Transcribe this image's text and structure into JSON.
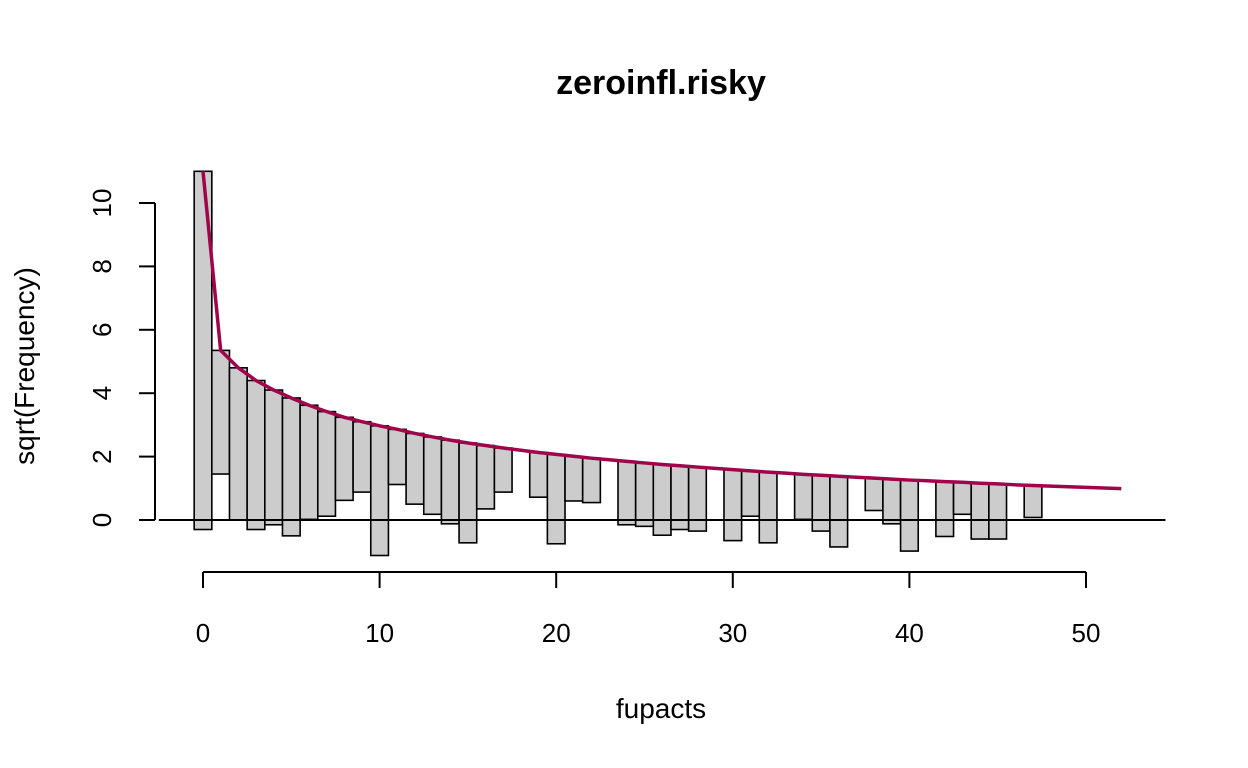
{
  "chart_data": {
    "type": "bar",
    "title": "zeroinfl.risky",
    "xlabel": "fupacts",
    "ylabel": "sqrt(Frequency)",
    "xlim": [
      -2.5,
      54.5
    ],
    "ylim": [
      -1.6,
      11.5
    ],
    "x_ticks": [
      "0",
      "10",
      "20",
      "30",
      "40",
      "50"
    ],
    "y_ticks": [
      "0",
      "2",
      "4",
      "6",
      "8",
      "10"
    ],
    "bar_width": 1,
    "bar_fill": "#cccccc",
    "bar_stroke": "#000000",
    "curve_color": "#a0044a",
    "bars": [
      {
        "x": 0,
        "top": 11.0,
        "bottom": -0.3
      },
      {
        "x": 1,
        "top": 5.35,
        "bottom": 1.45
      },
      {
        "x": 2,
        "top": 4.8,
        "bottom": 0.0
      },
      {
        "x": 3,
        "top": 4.4,
        "bottom": -0.3
      },
      {
        "x": 4,
        "top": 4.1,
        "bottom": -0.15
      },
      {
        "x": 5,
        "top": 3.85,
        "bottom": -0.5
      },
      {
        "x": 6,
        "top": 3.62,
        "bottom": 0.02
      },
      {
        "x": 7,
        "top": 3.42,
        "bottom": 0.12
      },
      {
        "x": 8,
        "top": 3.24,
        "bottom": 0.62
      },
      {
        "x": 9,
        "top": 3.1,
        "bottom": 0.88
      },
      {
        "x": 10,
        "top": 2.97,
        "bottom": -1.12
      },
      {
        "x": 11,
        "top": 2.86,
        "bottom": 1.12
      },
      {
        "x": 12,
        "top": 2.73,
        "bottom": 0.5
      },
      {
        "x": 13,
        "top": 2.62,
        "bottom": 0.18
      },
      {
        "x": 14,
        "top": 2.52,
        "bottom": -0.12
      },
      {
        "x": 15,
        "top": 2.43,
        "bottom": -0.72
      },
      {
        "x": 16,
        "top": 2.35,
        "bottom": 0.35
      },
      {
        "x": 17,
        "top": 2.27,
        "bottom": 0.88
      },
      {
        "x": 19,
        "top": 2.13,
        "bottom": 0.72
      },
      {
        "x": 20,
        "top": 2.07,
        "bottom": -0.75
      },
      {
        "x": 21,
        "top": 2.01,
        "bottom": 0.6
      },
      {
        "x": 22,
        "top": 1.95,
        "bottom": 0.55
      },
      {
        "x": 24,
        "top": 1.85,
        "bottom": -0.15
      },
      {
        "x": 25,
        "top": 1.8,
        "bottom": -0.2
      },
      {
        "x": 26,
        "top": 1.75,
        "bottom": -0.48
      },
      {
        "x": 27,
        "top": 1.71,
        "bottom": -0.3
      },
      {
        "x": 28,
        "top": 1.67,
        "bottom": -0.35
      },
      {
        "x": 30,
        "top": 1.59,
        "bottom": -0.65
      },
      {
        "x": 31,
        "top": 1.55,
        "bottom": 0.12
      },
      {
        "x": 32,
        "top": 1.51,
        "bottom": -0.72
      },
      {
        "x": 34,
        "top": 1.44,
        "bottom": 0.02
      },
      {
        "x": 35,
        "top": 1.41,
        "bottom": -0.35
      },
      {
        "x": 36,
        "top": 1.38,
        "bottom": -0.85
      },
      {
        "x": 38,
        "top": 1.32,
        "bottom": 0.3
      },
      {
        "x": 39,
        "top": 1.29,
        "bottom": -0.12
      },
      {
        "x": 40,
        "top": 1.26,
        "bottom": -0.98
      },
      {
        "x": 42,
        "top": 1.21,
        "bottom": -0.52
      },
      {
        "x": 43,
        "top": 1.19,
        "bottom": 0.18
      },
      {
        "x": 44,
        "top": 1.16,
        "bottom": -0.6
      },
      {
        "x": 45,
        "top": 1.14,
        "bottom": -0.6
      },
      {
        "x": 47,
        "top": 1.09,
        "bottom": 0.08
      }
    ],
    "curve": {
      "x": [
        0,
        1,
        2,
        3,
        4,
        5,
        6,
        7,
        8,
        9,
        10,
        11,
        12,
        13,
        14,
        15,
        16,
        17,
        18,
        19,
        20,
        21,
        22,
        23,
        24,
        25,
        26,
        27,
        28,
        29,
        30,
        31,
        32,
        33,
        34,
        35,
        36,
        37,
        38,
        39,
        40,
        41,
        42,
        43,
        44,
        45,
        46,
        47,
        48,
        49,
        50,
        51,
        52
      ],
      "y": [
        11.0,
        5.35,
        4.8,
        4.4,
        4.1,
        3.85,
        3.62,
        3.42,
        3.24,
        3.1,
        2.97,
        2.86,
        2.73,
        2.62,
        2.52,
        2.43,
        2.35,
        2.27,
        2.2,
        2.13,
        2.07,
        2.01,
        1.95,
        1.9,
        1.85,
        1.8,
        1.75,
        1.71,
        1.67,
        1.63,
        1.59,
        1.55,
        1.51,
        1.48,
        1.44,
        1.41,
        1.38,
        1.35,
        1.32,
        1.29,
        1.26,
        1.24,
        1.21,
        1.19,
        1.16,
        1.14,
        1.11,
        1.09,
        1.07,
        1.05,
        1.03,
        1.01,
        0.99
      ]
    }
  }
}
